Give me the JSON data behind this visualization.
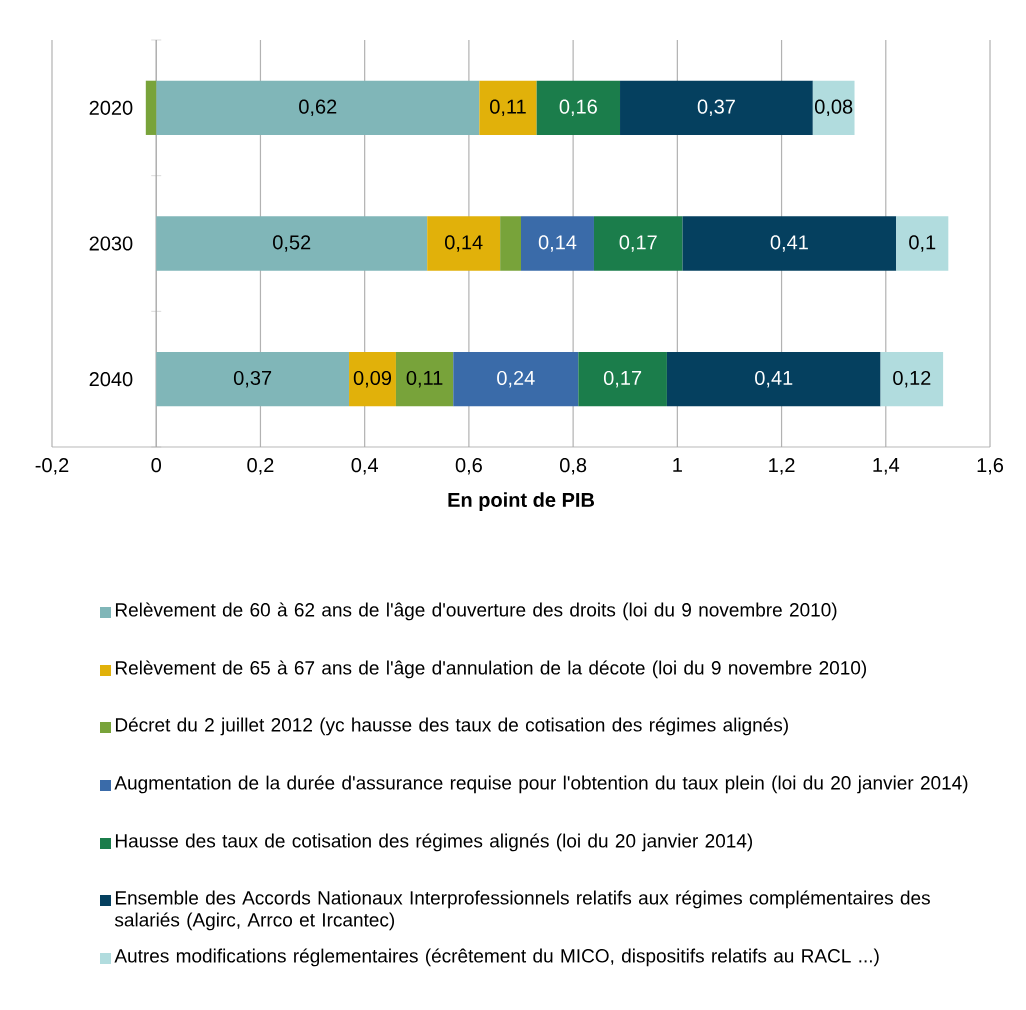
{
  "chart_data": {
    "type": "bar",
    "orientation": "horizontal",
    "stacked": true,
    "xlabel": "En point de PIB",
    "categories": [
      "2020",
      "2030",
      "2040"
    ],
    "xlim": [
      -0.2,
      1.6
    ],
    "xticks": [
      {
        "value": -0.2,
        "label": "-0,2"
      },
      0,
      {
        "value": 0.2,
        "label": "0,2"
      },
      {
        "value": 0.4,
        "label": "0,4"
      },
      {
        "value": 0.6,
        "label": "0,6"
      },
      {
        "value": 0.8,
        "label": "0,8"
      },
      1,
      {
        "value": 1.2,
        "label": "1,2"
      },
      {
        "value": 1.4,
        "label": "1,4"
      },
      {
        "value": 1.6,
        "label": "1,6"
      }
    ],
    "grid": "x",
    "legend": "bottom",
    "series": [
      {
        "name": "Relèvement de 60 à 62 ans de l'âge d'ouverture des droits (loi du 9 novembre 2010)",
        "color": "#80b6b8",
        "values": [
          0.62,
          0.52,
          0.37
        ],
        "value_labels": [
          "0,62",
          "0,52",
          "0,37"
        ]
      },
      {
        "name": "Relèvement de 65 à 67 ans de l'âge d'annulation de la décote  (loi du 9 novembre 2010)",
        "color": "#e1b10a",
        "values": [
          0.11,
          0.14,
          0.09
        ],
        "value_labels": [
          "0,11",
          "0,14",
          "0,09"
        ]
      },
      {
        "name": "Décret du 2 juillet 2012 (yc hausse des taux de cotisation des régimes alignés)",
        "color": "#78a33a",
        "values": [
          -0.02,
          0.04,
          0.11
        ],
        "value_labels": [
          null,
          null,
          "0,11"
        ]
      },
      {
        "name": "Augmentation de la durée d'assurance requise pour l'obtention du taux plein (loi du 20 janvier 2014)",
        "color": "#3a6ba9",
        "values": [
          null,
          0.14,
          0.24
        ],
        "value_labels": [
          null,
          "0,14",
          "0,24"
        ]
      },
      {
        "name": "Hausse des taux de cotisation des régimes alignés (loi du 20 janvier 2014)",
        "color": "#1b7d4b",
        "values": [
          0.16,
          0.17,
          0.17
        ],
        "value_labels": [
          "0,16",
          "0,17",
          "0,17"
        ]
      },
      {
        "name": "Ensemble des Accords Nationaux Interprofessionnels relatifs aux régimes complémentaires des salariés (Agirc, Arrco et Ircantec)",
        "color": "#05405f",
        "values": [
          0.37,
          0.41,
          0.41
        ],
        "value_labels": [
          "0,37",
          "0,41",
          "0,41"
        ]
      },
      {
        "name": "Autres modifications réglementaires (écrêtement du MICO, dispositifs relatifs au RACL ...)",
        "color": "#b1dcde",
        "values": [
          0.08,
          0.1,
          0.12
        ],
        "value_labels": [
          "0,08",
          "0,1",
          "0,12"
        ]
      }
    ]
  }
}
